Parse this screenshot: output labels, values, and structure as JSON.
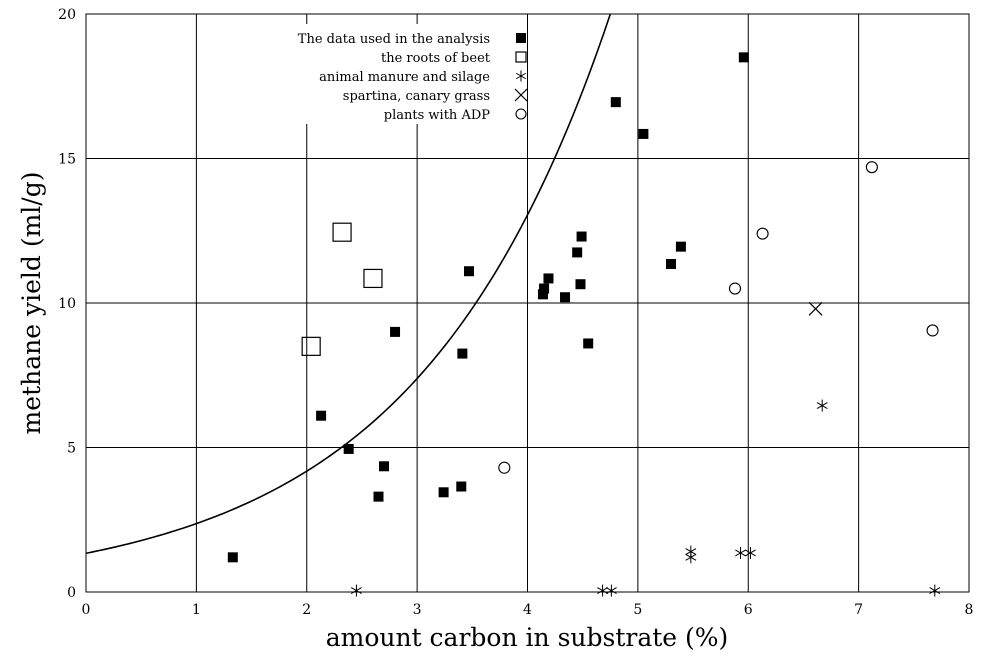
{
  "chart_data": {
    "type": "scatter",
    "title": "",
    "xlabel": "amount carbon in substrate (%)",
    "ylabel": "methane yield (ml/g)",
    "xlim": [
      0,
      8
    ],
    "ylim": [
      0,
      20
    ],
    "x_ticks": [
      "0",
      "1",
      "2",
      "3",
      "4",
      "5",
      "6",
      "7",
      "8"
    ],
    "y_ticks": [
      "0",
      "5",
      "10",
      "15",
      "20"
    ],
    "grid": true,
    "legend_position": "top-center",
    "series": [
      {
        "name": "The data used in the analysis",
        "marker": "filled-square",
        "points": [
          [
            1.33,
            1.2
          ],
          [
            2.13,
            6.1
          ],
          [
            2.38,
            4.95
          ],
          [
            2.65,
            3.3
          ],
          [
            2.7,
            4.35
          ],
          [
            2.8,
            9.0
          ],
          [
            3.24,
            3.45
          ],
          [
            3.4,
            3.65
          ],
          [
            3.41,
            8.25
          ],
          [
            3.47,
            11.1
          ],
          [
            4.14,
            10.3
          ],
          [
            4.15,
            10.5
          ],
          [
            4.19,
            10.85
          ],
          [
            4.34,
            10.2
          ],
          [
            4.45,
            11.75
          ],
          [
            4.48,
            10.65
          ],
          [
            4.49,
            12.3
          ],
          [
            4.55,
            8.6
          ],
          [
            4.8,
            16.95
          ],
          [
            5.05,
            15.85
          ],
          [
            5.3,
            11.35
          ],
          [
            5.39,
            11.95
          ],
          [
            5.96,
            18.5
          ]
        ]
      },
      {
        "name": "the roots of beet",
        "marker": "open-square",
        "points": [
          [
            2.04,
            8.5
          ],
          [
            2.32,
            12.45
          ],
          [
            2.6,
            10.85
          ]
        ]
      },
      {
        "name": "animal manure and silage",
        "marker": "asterisk",
        "points": [
          [
            2.45,
            0.05
          ],
          [
            4.68,
            0.05
          ],
          [
            4.76,
            0.05
          ],
          [
            5.48,
            1.2
          ],
          [
            5.48,
            1.4
          ],
          [
            5.93,
            1.35
          ],
          [
            6.02,
            1.35
          ],
          [
            6.67,
            6.45
          ],
          [
            7.69,
            0.05
          ]
        ]
      },
      {
        "name": "spartina, canary grass",
        "marker": "cross",
        "points": [
          [
            6.61,
            9.8
          ]
        ]
      },
      {
        "name": "plants with ADP",
        "marker": "open-circle",
        "points": [
          [
            3.79,
            4.3
          ],
          [
            5.88,
            10.5
          ],
          [
            6.13,
            12.4
          ],
          [
            7.12,
            14.7
          ],
          [
            7.67,
            9.05
          ]
        ]
      }
    ],
    "fit_curve": {
      "type": "exponential",
      "a": 1.34,
      "b": 0.569,
      "x_range": [
        0,
        6.05
      ]
    }
  }
}
